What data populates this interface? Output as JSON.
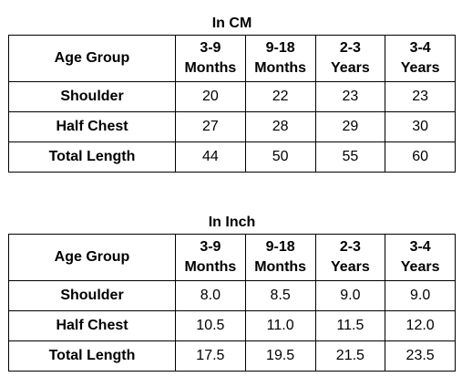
{
  "tables": [
    {
      "caption": "In CM",
      "header_label": "Age Group",
      "columns": [
        {
          "line1": "3-9",
          "line2": "Months"
        },
        {
          "line1": "9-18",
          "line2": "Months"
        },
        {
          "line1": "2-3",
          "line2": "Years"
        },
        {
          "line1": "3-4",
          "line2": "Years"
        }
      ],
      "rows": [
        {
          "label": "Shoulder",
          "values": [
            "20",
            "22",
            "23",
            "23"
          ]
        },
        {
          "label": "Half Chest",
          "values": [
            "27",
            "28",
            "29",
            "30"
          ]
        },
        {
          "label": "Total Length",
          "values": [
            "44",
            "50",
            "55",
            "60"
          ]
        }
      ]
    },
    {
      "caption": "In Inch",
      "header_label": "Age Group",
      "columns": [
        {
          "line1": "3-9",
          "line2": "Months"
        },
        {
          "line1": "9-18",
          "line2": "Months"
        },
        {
          "line1": "2-3",
          "line2": "Years"
        },
        {
          "line1": "3-4",
          "line2": "Years"
        }
      ],
      "rows": [
        {
          "label": "Shoulder",
          "values": [
            "8.0",
            "8.5",
            "9.0",
            "9.0"
          ]
        },
        {
          "label": "Half Chest",
          "values": [
            "10.5",
            "11.0",
            "11.5",
            "12.0"
          ]
        },
        {
          "label": "Total Length",
          "values": [
            "17.5",
            "19.5",
            "21.5",
            "23.5"
          ]
        }
      ]
    }
  ]
}
